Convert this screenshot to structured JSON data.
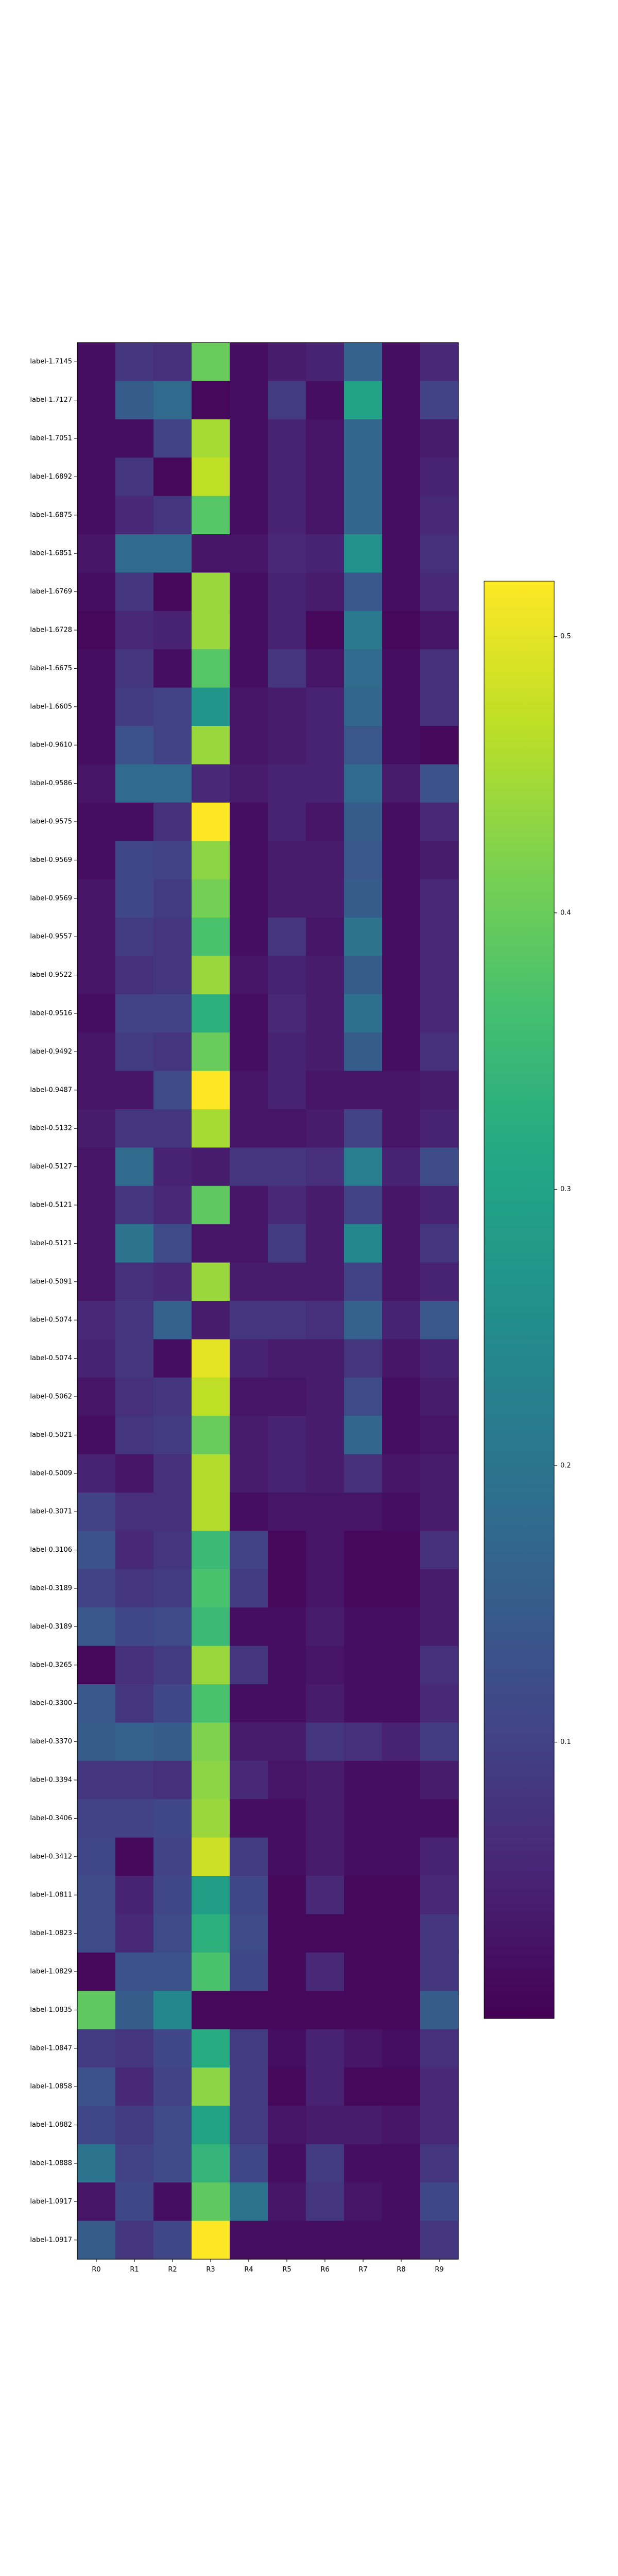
{
  "chart_data": {
    "type": "heatmap",
    "title": "",
    "xlabel": "",
    "ylabel": "",
    "columns": [
      "R0",
      "R1",
      "R2",
      "R3",
      "R4",
      "R5",
      "R6",
      "R7",
      "R8",
      "R9"
    ],
    "rows": [
      "label-1.7145",
      "label-1.7127",
      "label-1.7051",
      "label-1.6892",
      "label-1.6875",
      "label-1.6851",
      "label-1.6769",
      "label-1.6728",
      "label-1.6675",
      "label-1.6605",
      "label-0.9610",
      "label-0.9586",
      "label-0.9575",
      "label-0.9569",
      "label-0.9569",
      "label-0.9557",
      "label-0.9522",
      "label-0.9516",
      "label-0.9492",
      "label-0.9487",
      "label-0.5132",
      "label-0.5127",
      "label-0.5121",
      "label-0.5121",
      "label-0.5091",
      "label-0.5074",
      "label-0.5074",
      "label-0.5062",
      "label-0.5021",
      "label-0.5009",
      "label-0.3071",
      "label-0.3106",
      "label-0.3189",
      "label-0.3189",
      "label-0.3265",
      "label-0.3300",
      "label-0.3370",
      "label-0.3394",
      "label-0.3406",
      "label-0.3412",
      "label-1.0811",
      "label-1.0823",
      "label-1.0829",
      "label-1.0835",
      "label-1.0847",
      "label-1.0858",
      "label-1.0882",
      "label-1.0888",
      "label-1.0917",
      "label-1.0917"
    ],
    "values": [
      [
        0.02,
        0.08,
        0.07,
        0.4,
        0.02,
        0.04,
        0.05,
        0.16,
        0.02,
        0.06
      ],
      [
        0.02,
        0.15,
        0.18,
        0.01,
        0.02,
        0.09,
        0.02,
        0.3,
        0.02,
        0.1
      ],
      [
        0.02,
        0.02,
        0.1,
        0.45,
        0.02,
        0.05,
        0.03,
        0.17,
        0.02,
        0.04
      ],
      [
        0.02,
        0.08,
        0.01,
        0.47,
        0.02,
        0.05,
        0.03,
        0.17,
        0.02,
        0.05
      ],
      [
        0.02,
        0.06,
        0.08,
        0.38,
        0.02,
        0.05,
        0.03,
        0.17,
        0.02,
        0.06
      ],
      [
        0.03,
        0.18,
        0.18,
        0.03,
        0.03,
        0.06,
        0.05,
        0.26,
        0.02,
        0.07
      ],
      [
        0.02,
        0.08,
        0.01,
        0.44,
        0.02,
        0.05,
        0.04,
        0.14,
        0.02,
        0.06
      ],
      [
        0.01,
        0.06,
        0.05,
        0.44,
        0.02,
        0.05,
        0.01,
        0.21,
        0.01,
        0.03
      ],
      [
        0.02,
        0.08,
        0.02,
        0.38,
        0.02,
        0.08,
        0.03,
        0.18,
        0.02,
        0.07
      ],
      [
        0.02,
        0.09,
        0.1,
        0.27,
        0.03,
        0.04,
        0.05,
        0.17,
        0.02,
        0.07
      ],
      [
        0.02,
        0.13,
        0.1,
        0.44,
        0.03,
        0.04,
        0.05,
        0.14,
        0.02,
        0.01
      ],
      [
        0.03,
        0.18,
        0.18,
        0.06,
        0.04,
        0.05,
        0.05,
        0.18,
        0.04,
        0.13
      ],
      [
        0.02,
        0.02,
        0.07,
        0.52,
        0.02,
        0.05,
        0.03,
        0.15,
        0.02,
        0.06
      ],
      [
        0.02,
        0.11,
        0.1,
        0.43,
        0.02,
        0.04,
        0.04,
        0.14,
        0.02,
        0.04
      ],
      [
        0.03,
        0.11,
        0.09,
        0.41,
        0.02,
        0.04,
        0.04,
        0.15,
        0.02,
        0.06
      ],
      [
        0.03,
        0.09,
        0.08,
        0.37,
        0.02,
        0.08,
        0.03,
        0.2,
        0.02,
        0.06
      ],
      [
        0.03,
        0.07,
        0.08,
        0.44,
        0.03,
        0.05,
        0.04,
        0.15,
        0.02,
        0.06
      ],
      [
        0.02,
        0.1,
        0.1,
        0.33,
        0.02,
        0.06,
        0.04,
        0.19,
        0.02,
        0.06
      ],
      [
        0.03,
        0.09,
        0.08,
        0.4,
        0.02,
        0.05,
        0.04,
        0.15,
        0.02,
        0.07
      ],
      [
        0.03,
        0.03,
        0.12,
        0.52,
        0.03,
        0.05,
        0.03,
        0.03,
        0.03,
        0.04
      ],
      [
        0.04,
        0.08,
        0.08,
        0.45,
        0.03,
        0.03,
        0.04,
        0.1,
        0.03,
        0.05
      ],
      [
        0.03,
        0.18,
        0.05,
        0.04,
        0.08,
        0.08,
        0.07,
        0.22,
        0.05,
        0.12
      ],
      [
        0.03,
        0.08,
        0.06,
        0.39,
        0.03,
        0.06,
        0.04,
        0.1,
        0.03,
        0.05
      ],
      [
        0.03,
        0.2,
        0.12,
        0.03,
        0.03,
        0.09,
        0.04,
        0.24,
        0.03,
        0.08
      ],
      [
        0.03,
        0.07,
        0.06,
        0.44,
        0.04,
        0.04,
        0.04,
        0.1,
        0.03,
        0.05
      ],
      [
        0.06,
        0.08,
        0.16,
        0.04,
        0.08,
        0.08,
        0.07,
        0.16,
        0.05,
        0.14
      ],
      [
        0.05,
        0.08,
        0.02,
        0.5,
        0.05,
        0.04,
        0.04,
        0.08,
        0.03,
        0.05
      ],
      [
        0.03,
        0.07,
        0.08,
        0.47,
        0.03,
        0.03,
        0.04,
        0.12,
        0.02,
        0.04
      ],
      [
        0.02,
        0.08,
        0.09,
        0.4,
        0.04,
        0.05,
        0.04,
        0.17,
        0.02,
        0.03
      ],
      [
        0.05,
        0.03,
        0.07,
        0.46,
        0.04,
        0.05,
        0.04,
        0.07,
        0.03,
        0.04
      ],
      [
        0.1,
        0.07,
        0.07,
        0.46,
        0.02,
        0.03,
        0.03,
        0.03,
        0.02,
        0.04
      ],
      [
        0.13,
        0.06,
        0.08,
        0.35,
        0.1,
        0.01,
        0.03,
        0.01,
        0.01,
        0.07
      ],
      [
        0.1,
        0.08,
        0.09,
        0.37,
        0.09,
        0.01,
        0.03,
        0.01,
        0.01,
        0.04
      ],
      [
        0.14,
        0.11,
        0.12,
        0.35,
        0.02,
        0.02,
        0.04,
        0.02,
        0.02,
        0.04
      ],
      [
        0.01,
        0.07,
        0.09,
        0.44,
        0.08,
        0.02,
        0.03,
        0.02,
        0.02,
        0.07
      ],
      [
        0.14,
        0.08,
        0.11,
        0.37,
        0.02,
        0.02,
        0.04,
        0.02,
        0.02,
        0.06
      ],
      [
        0.15,
        0.16,
        0.15,
        0.42,
        0.04,
        0.04,
        0.08,
        0.07,
        0.05,
        0.09
      ],
      [
        0.08,
        0.08,
        0.07,
        0.43,
        0.06,
        0.03,
        0.04,
        0.02,
        0.02,
        0.04
      ],
      [
        0.1,
        0.1,
        0.11,
        0.44,
        0.02,
        0.02,
        0.04,
        0.02,
        0.02,
        0.02
      ],
      [
        0.11,
        0.01,
        0.1,
        0.48,
        0.09,
        0.02,
        0.04,
        0.02,
        0.02,
        0.05
      ],
      [
        0.12,
        0.05,
        0.11,
        0.29,
        0.11,
        0.01,
        0.06,
        0.01,
        0.01,
        0.06
      ],
      [
        0.12,
        0.06,
        0.12,
        0.33,
        0.12,
        0.01,
        0.01,
        0.01,
        0.01,
        0.08
      ],
      [
        0.01,
        0.13,
        0.13,
        0.37,
        0.11,
        0.01,
        0.06,
        0.01,
        0.01,
        0.08
      ],
      [
        0.39,
        0.15,
        0.24,
        0.01,
        0.01,
        0.01,
        0.01,
        0.01,
        0.01,
        0.15
      ],
      [
        0.09,
        0.08,
        0.11,
        0.32,
        0.09,
        0.02,
        0.05,
        0.03,
        0.02,
        0.07
      ],
      [
        0.13,
        0.06,
        0.1,
        0.43,
        0.09,
        0.01,
        0.05,
        0.01,
        0.01,
        0.06
      ],
      [
        0.11,
        0.09,
        0.12,
        0.3,
        0.09,
        0.03,
        0.04,
        0.04,
        0.03,
        0.06
      ],
      [
        0.2,
        0.1,
        0.12,
        0.34,
        0.11,
        0.02,
        0.09,
        0.02,
        0.02,
        0.08
      ],
      [
        0.03,
        0.11,
        0.02,
        0.39,
        0.2,
        0.03,
        0.08,
        0.03,
        0.02,
        0.11
      ],
      [
        0.15,
        0.08,
        0.11,
        0.52,
        0.02,
        0.02,
        0.02,
        0.02,
        0.02,
        0.08
      ]
    ],
    "colorbar": {
      "colormap": "viridis",
      "vmin": 0.0,
      "vmax": 0.52,
      "ticks": [
        0.1,
        0.2,
        0.3,
        0.4,
        0.5
      ],
      "tick_labels": [
        "0.1",
        "0.2",
        "0.3",
        "0.4",
        "0.5"
      ]
    },
    "grid": false,
    "legend": "none"
  }
}
